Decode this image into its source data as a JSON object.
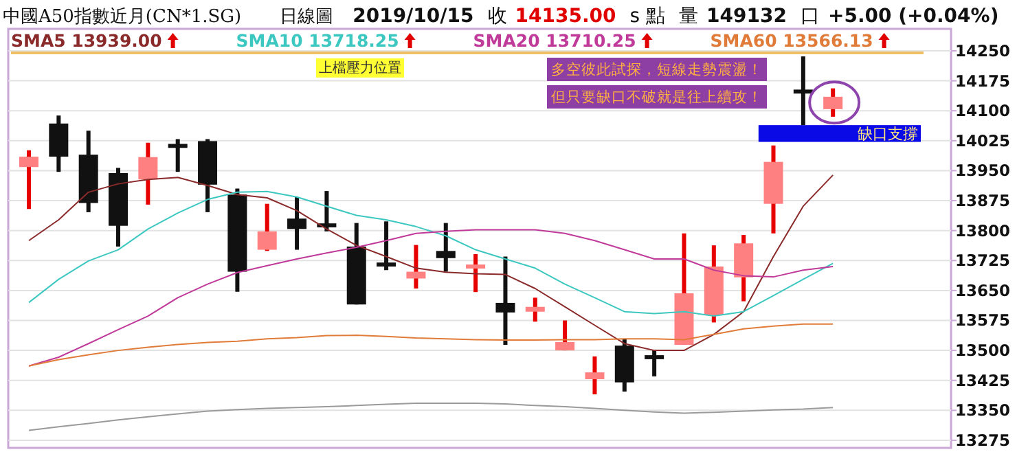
{
  "chart_data": {
    "type": "candlestick",
    "title": "中國A50指數近月(CN*1.SG)",
    "subtitle": "日線圖",
    "annotations": [
      "2019/10/15",
      "收",
      "14135.00",
      "s 點",
      "量",
      "149132",
      "口",
      "+5.00 (+0.04%)",
      "多空彼此試探，短線走勢震盪！",
      "但只要缺口不破就是往上續攻！"
    ],
    "categories": [
      null,
      null,
      null,
      null,
      null,
      null,
      null,
      null,
      null,
      null,
      null,
      null,
      null,
      null,
      null,
      null,
      null,
      null,
      null,
      null,
      null,
      null,
      null,
      null,
      null,
      null,
      null,
      null
    ],
    "ohlc": [
      [
        13959,
        14001,
        13854,
        13985
      ],
      [
        14068,
        14088,
        13947,
        13985
      ],
      [
        13990,
        14050,
        13846,
        13869
      ],
      [
        13944,
        13957,
        13760,
        13812
      ],
      [
        13928,
        14020,
        13865,
        13984
      ],
      [
        14017,
        14029,
        13947,
        14007
      ],
      [
        14024,
        14029,
        13846,
        13915
      ],
      [
        13890,
        13905,
        13647,
        13697
      ],
      [
        13752,
        13867,
        13749,
        13798
      ],
      [
        13830,
        13884,
        13752,
        13804
      ],
      [
        13818,
        13899,
        13798,
        13808
      ],
      [
        13760,
        13819,
        13615,
        13615
      ],
      [
        13720,
        13823,
        13701,
        13710
      ],
      [
        13680,
        13764,
        13655,
        13697
      ],
      [
        13749,
        13819,
        13697,
        13731
      ],
      [
        13705,
        13741,
        13646,
        13715
      ],
      [
        13619,
        13735,
        13514,
        13595
      ],
      [
        13597,
        13632,
        13572,
        13609
      ],
      [
        13500,
        13575,
        13500,
        13521
      ],
      [
        13428,
        13485,
        13390,
        13445
      ],
      [
        13512,
        13529,
        13397,
        13420
      ],
      [
        13488,
        13502,
        13435,
        13478
      ],
      [
        13514,
        13793,
        13514,
        13643
      ],
      [
        13588,
        13763,
        13570,
        13710
      ],
      [
        13683,
        13789,
        13623,
        13768
      ],
      [
        13867,
        14013,
        13793,
        13972
      ],
      [
        14153,
        14236,
        14064,
        14143
      ],
      [
        14104,
        14156,
        14085,
        14135
      ]
    ],
    "colors": [
      "#ff8080",
      "#111111",
      "#111111",
      "#111111",
      "#ff8080",
      "#111111",
      "#111111",
      "#111111",
      "#ff8080",
      "#111111",
      "#111111",
      "#111111",
      "#111111",
      "#ff8080",
      "#111111",
      "#ff8080",
      "#111111",
      "#ff8080",
      "#ff8080",
      "#ff8080",
      "#111111",
      "#111111",
      "#ff8080",
      "#ff8080",
      "#ff8080",
      "#ff8080",
      "#111111",
      "#ff8080"
    ],
    "series": [
      {
        "name": "SMA5 13939.00",
        "type": "line",
        "color": "#8b2a2a",
        "values": [
          13775,
          13827,
          13896,
          13917,
          13928,
          13933,
          13913,
          13890,
          13882,
          13850,
          13804,
          13763,
          13735,
          13706,
          13696,
          13692,
          13690,
          13655,
          13609,
          13563,
          13517,
          13500,
          13500,
          13540,
          13597,
          13735,
          13861,
          13939
        ]
      },
      {
        "name": "SMA10 13718.25",
        "type": "line",
        "color": "#3cc8c0",
        "values": [
          13620,
          13678,
          13724,
          13752,
          13804,
          13844,
          13878,
          13896,
          13898,
          13884,
          13861,
          13838,
          13827,
          13810,
          13787,
          13752,
          13729,
          13706,
          13666,
          13632,
          13597,
          13592,
          13597,
          13586,
          13597,
          13637,
          13678,
          13718
        ]
      },
      {
        "name": "SMA20 13710.25",
        "type": "line",
        "color": "#c03a9a",
        "values": [
          13461,
          13483,
          13517,
          13552,
          13586,
          13632,
          13666,
          13695,
          13712,
          13729,
          13744,
          13758,
          13775,
          13793,
          13798,
          13802,
          13802,
          13802,
          13793,
          13775,
          13752,
          13729,
          13729,
          13701,
          13687,
          13684,
          13701,
          13710
        ]
      },
      {
        "name": "SMA60 13566.13",
        "type": "line",
        "color": "#e07b39",
        "values": [
          13461,
          13477,
          13489,
          13500,
          13508,
          13515,
          13520,
          13523,
          13529,
          13532,
          13537,
          13538,
          13535,
          13531,
          13529,
          13527,
          13526,
          13526,
          13527,
          13527,
          13529,
          13529,
          13527,
          13540,
          13554,
          13561,
          13566,
          13566
        ]
      },
      {
        "type": "line",
        "color": "#9a9a9a",
        "values": [
          13300,
          13309,
          13317,
          13326,
          13334,
          13341,
          13348,
          13352,
          13355,
          13357,
          13359,
          13362,
          13365,
          13368,
          13368,
          13368,
          13366,
          13362,
          13359,
          13355,
          13350,
          13346,
          13343,
          13345,
          13348,
          13351,
          13353,
          13357
        ]
      }
    ],
    "ref_lines": [
      {
        "axis": "y",
        "value": 14245,
        "label": "上檔壓力位置",
        "color": "#f0c060"
      }
    ],
    "bands": [
      {
        "axis": "y",
        "from": 14022,
        "to": 14064,
        "label": "缺口支撐",
        "color": "#0a0ae6"
      }
    ],
    "ylim": [
      13256,
      14305
    ],
    "yticks": [
      14250,
      14175,
      14100,
      14025,
      13950,
      13875,
      13800,
      13725,
      13650,
      13575,
      13500,
      13425,
      13350,
      13275
    ],
    "grid": "y"
  }
}
